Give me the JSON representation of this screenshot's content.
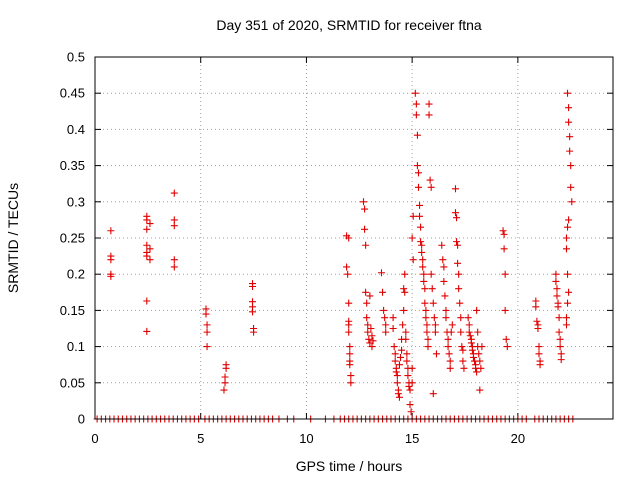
{
  "chart_data": {
    "type": "scatter",
    "title": "Day 351 of 2020, SRMTID for receiver ftna",
    "xlabel": "GPS time / hours",
    "ylabel": "SRMTID / TECUs",
    "xlim": [
      0,
      24.5
    ],
    "ylim": [
      0,
      0.5
    ],
    "x_ticks": [
      0,
      5,
      10,
      15,
      20
    ],
    "x_tick_labels": [
      "0",
      "5",
      "10",
      "15",
      "20"
    ],
    "y_ticks": [
      0,
      0.05,
      0.1,
      0.15,
      0.2,
      0.25,
      0.3,
      0.35,
      0.4,
      0.45,
      0.5
    ],
    "y_tick_labels": [
      "0",
      "0.05",
      "0.1",
      "0.15",
      "0.2",
      "0.25",
      "0.3",
      "0.35",
      "0.4",
      "0.45",
      "0.5"
    ],
    "grid": true,
    "marker": "+",
    "color": "#e00000",
    "series": [
      {
        "name": "SRMTID",
        "points": [
          [
            0.75,
            0.26
          ],
          [
            0.75,
            0.225
          ],
          [
            0.75,
            0.22
          ],
          [
            0.75,
            0.2
          ],
          [
            0.75,
            0.197
          ],
          [
            2.45,
            0.28
          ],
          [
            2.45,
            0.275
          ],
          [
            2.45,
            0.262
          ],
          [
            2.45,
            0.24
          ],
          [
            2.45,
            0.23
          ],
          [
            2.45,
            0.225
          ],
          [
            2.45,
            0.163
          ],
          [
            2.45,
            0.121
          ],
          [
            2.6,
            0.27
          ],
          [
            2.6,
            0.235
          ],
          [
            2.6,
            0.22
          ],
          [
            3.75,
            0.312
          ],
          [
            3.75,
            0.275
          ],
          [
            3.75,
            0.267
          ],
          [
            3.75,
            0.22
          ],
          [
            3.75,
            0.21
          ],
          [
            5.25,
            0.152
          ],
          [
            5.25,
            0.145
          ],
          [
            5.3,
            0.13
          ],
          [
            5.3,
            0.12
          ],
          [
            5.3,
            0.1
          ],
          [
            6.2,
            0.075
          ],
          [
            6.2,
            0.07
          ],
          [
            6.15,
            0.058
          ],
          [
            6.15,
            0.05
          ],
          [
            6.1,
            0.04
          ],
          [
            7.45,
            0.187
          ],
          [
            7.45,
            0.183
          ],
          [
            7.45,
            0.162
          ],
          [
            7.45,
            0.155
          ],
          [
            7.45,
            0.148
          ],
          [
            7.5,
            0.125
          ],
          [
            7.5,
            0.12
          ],
          [
            11.9,
            0.253
          ],
          [
            11.9,
            0.21
          ],
          [
            11.95,
            0.2
          ],
          [
            12.0,
            0.25
          ],
          [
            12.0,
            0.16
          ],
          [
            12.0,
            0.135
          ],
          [
            12.0,
            0.13
          ],
          [
            12.0,
            0.12
          ],
          [
            12.05,
            0.1
          ],
          [
            12.05,
            0.09
          ],
          [
            12.05,
            0.08
          ],
          [
            12.05,
            0.075
          ],
          [
            12.1,
            0.06
          ],
          [
            12.1,
            0.05
          ],
          [
            12.7,
            0.3
          ],
          [
            12.75,
            0.29
          ],
          [
            12.75,
            0.262
          ],
          [
            12.8,
            0.24
          ],
          [
            12.8,
            0.175
          ],
          [
            12.85,
            0.16
          ],
          [
            12.85,
            0.14
          ],
          [
            12.9,
            0.13
          ],
          [
            12.9,
            0.12
          ],
          [
            12.95,
            0.11
          ],
          [
            13.0,
            0.17
          ],
          [
            13.0,
            0.105
          ],
          [
            13.05,
            0.125
          ],
          [
            13.1,
            0.1
          ],
          [
            13.1,
            0.115
          ],
          [
            13.15,
            0.108
          ],
          [
            13.55,
            0.202
          ],
          [
            13.6,
            0.175
          ],
          [
            13.65,
            0.15
          ],
          [
            13.7,
            0.14
          ],
          [
            13.75,
            0.13
          ],
          [
            13.75,
            0.12
          ],
          [
            14.1,
            0.14
          ],
          [
            14.1,
            0.125
          ],
          [
            14.15,
            0.1
          ],
          [
            14.2,
            0.09
          ],
          [
            14.2,
            0.08
          ],
          [
            14.25,
            0.07
          ],
          [
            14.25,
            0.065
          ],
          [
            14.3,
            0.06
          ],
          [
            14.3,
            0.05
          ],
          [
            14.35,
            0.04
          ],
          [
            14.35,
            0.035
          ],
          [
            14.4,
            0.03
          ],
          [
            14.4,
            0.075
          ],
          [
            14.45,
            0.085
          ],
          [
            14.5,
            0.11
          ],
          [
            14.5,
            0.095
          ],
          [
            14.55,
            0.13
          ],
          [
            14.6,
            0.15
          ],
          [
            14.6,
            0.18
          ],
          [
            14.65,
            0.2
          ],
          [
            14.65,
            0.175
          ],
          [
            14.7,
            0.12
          ],
          [
            14.7,
            0.11
          ],
          [
            14.75,
            0.09
          ],
          [
            14.75,
            0.08
          ],
          [
            14.8,
            0.07
          ],
          [
            14.8,
            0.06
          ],
          [
            14.85,
            0.05
          ],
          [
            14.85,
            0.045
          ],
          [
            14.9,
            0.04
          ],
          [
            14.9,
            0.02
          ],
          [
            14.95,
            0.01
          ],
          [
            15.0,
            0.05
          ],
          [
            15.0,
            0.07
          ],
          [
            15.0,
            0.25
          ],
          [
            15.05,
            0.28
          ],
          [
            15.05,
            0.22
          ],
          [
            15.15,
            0.45
          ],
          [
            15.2,
            0.435
          ],
          [
            15.2,
            0.42
          ],
          [
            15.25,
            0.392
          ],
          [
            15.25,
            0.35
          ],
          [
            15.3,
            0.34
          ],
          [
            15.3,
            0.32
          ],
          [
            15.35,
            0.295
          ],
          [
            15.35,
            0.28
          ],
          [
            15.4,
            0.265
          ],
          [
            15.4,
            0.245
          ],
          [
            15.45,
            0.24
          ],
          [
            15.45,
            0.23
          ],
          [
            15.5,
            0.22
          ],
          [
            15.5,
            0.21
          ],
          [
            15.55,
            0.2
          ],
          [
            15.55,
            0.19
          ],
          [
            15.6,
            0.18
          ],
          [
            15.6,
            0.16
          ],
          [
            15.65,
            0.15
          ],
          [
            15.65,
            0.14
          ],
          [
            15.7,
            0.13
          ],
          [
            15.7,
            0.12
          ],
          [
            15.75,
            0.11
          ],
          [
            15.75,
            0.1
          ],
          [
            15.8,
            0.435
          ],
          [
            15.8,
            0.42
          ],
          [
            15.85,
            0.33
          ],
          [
            15.9,
            0.32
          ],
          [
            15.9,
            0.2
          ],
          [
            15.95,
            0.18
          ],
          [
            16.0,
            0.16
          ],
          [
            16.0,
            0.035
          ],
          [
            16.05,
            0.14
          ],
          [
            16.1,
            0.13
          ],
          [
            16.1,
            0.12
          ],
          [
            16.15,
            0.09
          ],
          [
            16.4,
            0.24
          ],
          [
            16.45,
            0.22
          ],
          [
            16.5,
            0.21
          ],
          [
            16.5,
            0.19
          ],
          [
            16.55,
            0.17
          ],
          [
            16.6,
            0.15
          ],
          [
            16.6,
            0.14
          ],
          [
            16.65,
            0.12
          ],
          [
            16.7,
            0.11
          ],
          [
            16.7,
            0.1
          ],
          [
            16.75,
            0.09
          ],
          [
            16.8,
            0.08
          ],
          [
            16.8,
            0.07
          ],
          [
            16.85,
            0.12
          ],
          [
            16.9,
            0.13
          ],
          [
            17.05,
            0.318
          ],
          [
            17.05,
            0.285
          ],
          [
            17.1,
            0.278
          ],
          [
            17.1,
            0.245
          ],
          [
            17.15,
            0.24
          ],
          [
            17.15,
            0.215
          ],
          [
            17.2,
            0.2
          ],
          [
            17.2,
            0.18
          ],
          [
            17.25,
            0.16
          ],
          [
            17.3,
            0.14
          ],
          [
            17.3,
            0.12
          ],
          [
            17.35,
            0.1
          ],
          [
            17.4,
            0.095
          ],
          [
            17.4,
            0.08
          ],
          [
            17.45,
            0.07
          ],
          [
            17.65,
            0.14
          ],
          [
            17.7,
            0.13
          ],
          [
            17.7,
            0.12
          ],
          [
            17.75,
            0.115
          ],
          [
            17.8,
            0.11
          ],
          [
            17.8,
            0.105
          ],
          [
            17.85,
            0.1
          ],
          [
            17.85,
            0.095
          ],
          [
            17.9,
            0.09
          ],
          [
            17.9,
            0.085
          ],
          [
            17.95,
            0.08
          ],
          [
            18.0,
            0.075
          ],
          [
            18.0,
            0.07
          ],
          [
            18.05,
            0.065
          ],
          [
            18.05,
            0.15
          ],
          [
            18.1,
            0.12
          ],
          [
            18.1,
            0.1
          ],
          [
            18.15,
            0.09
          ],
          [
            18.2,
            0.08
          ],
          [
            18.2,
            0.04
          ],
          [
            18.25,
            0.07
          ],
          [
            18.3,
            0.1
          ],
          [
            19.3,
            0.26
          ],
          [
            19.35,
            0.255
          ],
          [
            19.35,
            0.235
          ],
          [
            19.4,
            0.2
          ],
          [
            19.4,
            0.15
          ],
          [
            19.45,
            0.11
          ],
          [
            19.5,
            0.1
          ],
          [
            20.85,
            0.163
          ],
          [
            20.85,
            0.155
          ],
          [
            20.9,
            0.135
          ],
          [
            20.95,
            0.13
          ],
          [
            20.95,
            0.125
          ],
          [
            21.0,
            0.1
          ],
          [
            21.0,
            0.09
          ],
          [
            21.05,
            0.08
          ],
          [
            21.05,
            0.075
          ],
          [
            21.8,
            0.2
          ],
          [
            21.8,
            0.19
          ],
          [
            21.85,
            0.18
          ],
          [
            21.85,
            0.17
          ],
          [
            21.9,
            0.16
          ],
          [
            21.9,
            0.155
          ],
          [
            21.95,
            0.14
          ],
          [
            21.95,
            0.12
          ],
          [
            22.0,
            0.11
          ],
          [
            22.0,
            0.1
          ],
          [
            22.05,
            0.09
          ],
          [
            22.05,
            0.082
          ],
          [
            22.35,
            0.45
          ],
          [
            22.4,
            0.43
          ],
          [
            22.4,
            0.41
          ],
          [
            22.45,
            0.39
          ],
          [
            22.45,
            0.37
          ],
          [
            22.5,
            0.35
          ],
          [
            22.5,
            0.32
          ],
          [
            22.55,
            0.3
          ],
          [
            22.4,
            0.275
          ],
          [
            22.35,
            0.265
          ],
          [
            22.3,
            0.25
          ],
          [
            22.3,
            0.235
          ],
          [
            22.35,
            0.2
          ],
          [
            22.4,
            0.175
          ],
          [
            22.35,
            0.16
          ],
          [
            22.3,
            0.14
          ],
          [
            22.3,
            0.13
          ]
        ]
      }
    ],
    "zero_points_x": [
      0.1,
      0.3,
      0.5,
      0.7,
      0.9,
      1.1,
      1.3,
      1.5,
      1.7,
      1.9,
      2.1,
      2.3,
      2.5,
      2.7,
      2.9,
      3.1,
      3.3,
      3.5,
      3.7,
      3.9,
      4.1,
      4.3,
      4.5,
      4.7,
      4.9,
      5.2,
      5.4,
      5.6,
      5.8,
      6.0,
      6.2,
      6.4,
      6.6,
      6.8,
      7.0,
      7.2,
      7.4,
      7.6,
      7.8,
      8.0,
      8.2,
      8.4,
      8.7,
      9.1,
      9.4,
      10.2,
      10.9,
      11.3,
      11.6,
      11.8,
      12.0,
      12.2,
      12.4,
      12.6,
      12.8,
      13.0,
      13.2,
      13.4,
      13.6,
      13.8,
      14.0,
      14.2,
      14.4,
      14.6,
      14.8,
      15.0,
      15.2,
      15.4,
      15.6,
      15.8,
      16.0,
      16.2,
      16.4,
      16.6,
      16.8,
      17.0,
      17.2,
      17.4,
      17.6,
      17.8,
      18.0,
      18.2,
      18.4,
      18.6,
      18.8,
      19.0,
      19.2,
      19.4,
      19.6,
      19.8,
      20.0,
      20.2,
      20.4,
      20.8,
      21.0,
      21.2,
      21.4,
      21.6,
      21.8,
      22.0,
      22.2,
      22.4,
      22.6
    ]
  }
}
